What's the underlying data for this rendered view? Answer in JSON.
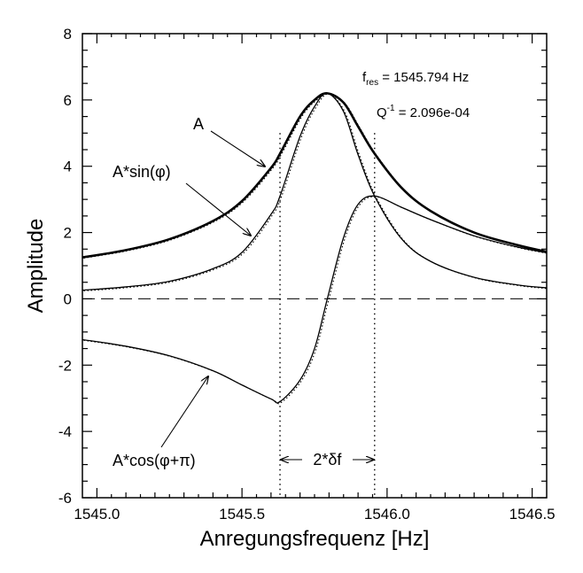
{
  "chart_data": {
    "type": "line",
    "xlabel": "Anregungsfrequenz [Hz]",
    "ylabel": "Amplitude",
    "xlim": [
      1544.95,
      1546.55
    ],
    "ylim": [
      -6,
      8
    ],
    "xticks": [
      "1545.0",
      "1545.5",
      "1546.0",
      "1546.5"
    ],
    "yticks": [
      "8",
      "6",
      "4",
      "2",
      "0",
      "-2",
      "-4",
      "-6"
    ],
    "resonance": {
      "f_res": 1545.794,
      "Q_inv": 0.0002096,
      "peak_amplitude": 6.2
    },
    "series": [
      {
        "name": "A",
        "x": [
          1544.95,
          1545.1,
          1545.25,
          1545.4,
          1545.5,
          1545.6,
          1545.631,
          1545.7,
          1545.75,
          1545.794,
          1545.85,
          1545.9,
          1545.957,
          1546.05,
          1546.15,
          1546.3,
          1546.45,
          1546.55
        ],
        "values": [
          1.25,
          1.47,
          1.8,
          2.35,
          2.95,
          3.95,
          4.38,
          5.5,
          6.0,
          6.2,
          5.92,
          5.2,
          4.38,
          3.35,
          2.65,
          2.0,
          1.62,
          1.42
        ]
      },
      {
        "name": "A*sin(φ)",
        "x": [
          1544.95,
          1545.1,
          1545.25,
          1545.4,
          1545.5,
          1545.6,
          1545.631,
          1545.7,
          1545.75,
          1545.794,
          1545.85,
          1545.9,
          1545.957,
          1546.05,
          1546.15,
          1546.3,
          1546.45,
          1546.55
        ],
        "values": [
          0.26,
          0.36,
          0.53,
          0.91,
          1.4,
          2.55,
          3.1,
          4.9,
          5.8,
          6.2,
          5.65,
          4.35,
          3.1,
          1.81,
          1.13,
          0.65,
          0.42,
          0.33
        ]
      },
      {
        "name": "A*cos(φ+π)",
        "x": [
          1544.95,
          1545.1,
          1545.25,
          1545.4,
          1545.5,
          1545.6,
          1545.631,
          1545.7,
          1545.75,
          1545.794,
          1545.85,
          1545.9,
          1545.957,
          1546.05,
          1546.15,
          1546.3,
          1546.45,
          1546.55
        ],
        "values": [
          -1.23,
          -1.43,
          -1.72,
          -2.17,
          -2.6,
          -3.02,
          -3.1,
          -2.45,
          -1.5,
          0.0,
          1.85,
          2.85,
          3.1,
          2.76,
          2.39,
          1.9,
          1.56,
          1.39
        ]
      }
    ],
    "reference_lines": {
      "horizontal_dashed_y": 0,
      "vertical_dotted_x": [
        1545.631,
        1545.957
      ]
    },
    "annotations": {
      "f_res_label": "f",
      "f_res_sub": "res",
      "f_res_value": " = 1545.794 Hz",
      "q_label": "Q",
      "q_sup": "-1",
      "q_value": " = 2.096e-04",
      "label_A": "A",
      "label_sin": "A*sin(φ)",
      "label_cos": "A*cos(φ+π)",
      "label_delta": "2*δf"
    },
    "grid": false,
    "legend": "none",
    "colors": {
      "line": "#000000",
      "background": "#ffffff"
    }
  }
}
